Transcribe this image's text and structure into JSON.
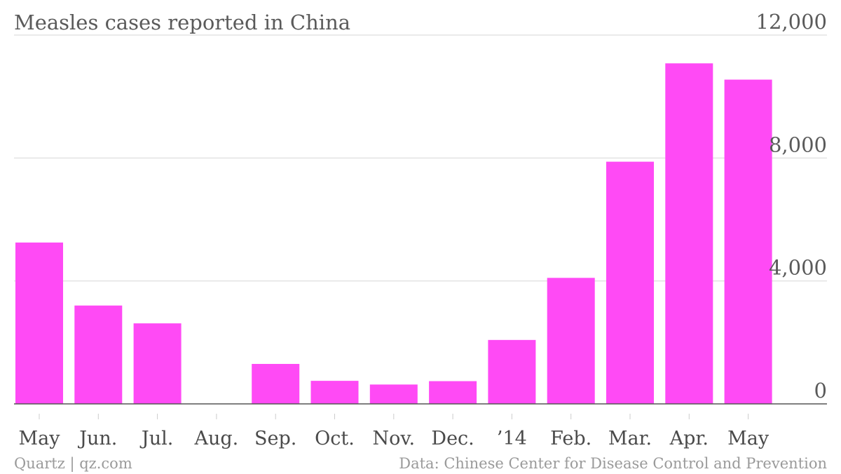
{
  "chart_data": {
    "type": "bar",
    "title": "Measles cases reported in China",
    "categories": [
      "May",
      "Jun.",
      "Jul.",
      "Aug.",
      "Sep.",
      "Oct.",
      "Nov.",
      "Dec.",
      "’14",
      "Feb.",
      "Mar.",
      "Apr.",
      "May"
    ],
    "values": [
      5250,
      3200,
      2620,
      0,
      1300,
      750,
      630,
      740,
      2080,
      4100,
      7880,
      11080,
      10550
    ],
    "ylim": [
      0,
      12000
    ],
    "yticks": [
      0,
      4000,
      8000,
      12000
    ],
    "ytick_labels": [
      "0",
      "4,000",
      "8,000",
      "12,000"
    ],
    "xlabel": "",
    "ylabel": "",
    "y_axis_side": "right",
    "grid": true,
    "legend": "none",
    "bar_color": "#ff4af5"
  },
  "footer": {
    "source_left": "Quartz | qz.com",
    "source_right": "Data: Chinese Center for Disease Control and Prevention"
  }
}
